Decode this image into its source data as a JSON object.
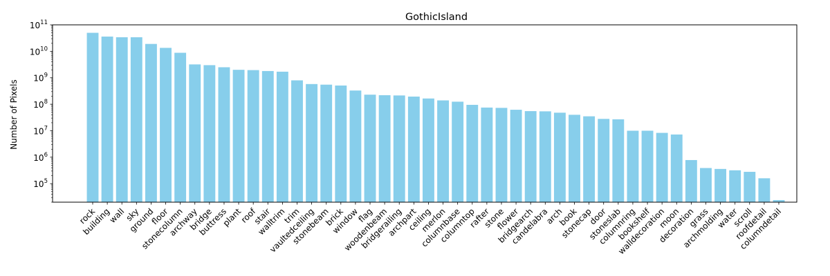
{
  "chart_data": {
    "type": "bar",
    "title": "GothicIsland",
    "xlabel": "",
    "ylabel": "Number of Pixels",
    "yscale": "log",
    "ylim": [
      20000,
      100000000000
    ],
    "yticks": [
      {
        "value": 100000,
        "base": "10",
        "exp": "5"
      },
      {
        "value": 1000000,
        "base": "10",
        "exp": "6"
      },
      {
        "value": 10000000,
        "base": "10",
        "exp": "7"
      },
      {
        "value": 100000000,
        "base": "10",
        "exp": "8"
      },
      {
        "value": 1000000000,
        "base": "10",
        "exp": "9"
      },
      {
        "value": 10000000000,
        "base": "10",
        "exp": "10"
      },
      {
        "value": 100000000000,
        "base": "10",
        "exp": "11"
      }
    ],
    "bar_color": "#87ceeb",
    "grid": false,
    "categories": [
      "rock",
      "building",
      "wall",
      "sky",
      "ground",
      "floor",
      "stonecolumn",
      "archway",
      "bridge",
      "buttress",
      "plant",
      "roof",
      "stair",
      "walltrim",
      "trim",
      "vaultedceiling",
      "stonebeam",
      "brick",
      "window",
      "flag",
      "woodenbeam",
      "bridgerailing",
      "archpart",
      "ceiling",
      "merlon",
      "columnbase",
      "columntop",
      "rafter",
      "stone",
      "flower",
      "bridgearch",
      "candelabra",
      "arch",
      "book",
      "stonecap",
      "door",
      "stoneslab",
      "columnring",
      "bookshelf",
      "walldecoration",
      "moon",
      "decoration",
      "grass",
      "archmolding",
      "water",
      "scroll",
      "roofdetail",
      "columndetail"
    ],
    "values": [
      50000000000,
      36000000000,
      34000000000,
      34000000000,
      19000000000,
      13500000000,
      8800000000,
      3200000000,
      3000000000,
      2500000000,
      2000000000,
      1950000000,
      1800000000,
      1700000000,
      800000000,
      580000000,
      550000000,
      510000000,
      330000000,
      230000000,
      220000000,
      215000000,
      195000000,
      165000000,
      140000000,
      125000000,
      95000000,
      75000000,
      73000000,
      62000000,
      55000000,
      54000000,
      48000000,
      40000000,
      35000000,
      28000000,
      27000000,
      10000000,
      10000000,
      8300000,
      7200000,
      780000,
      390000,
      360000,
      320000,
      280000,
      160000,
      24000
    ]
  }
}
